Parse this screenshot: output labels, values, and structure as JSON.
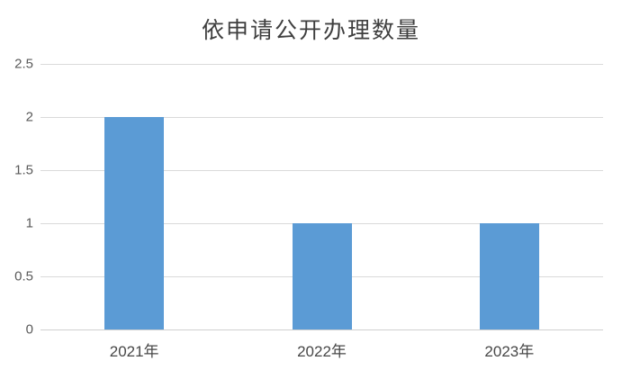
{
  "chart_data": {
    "type": "bar",
    "title": "依申请公开办理数量",
    "categories": [
      "2021年",
      "2022年",
      "2023年"
    ],
    "values": [
      2,
      1,
      1
    ],
    "xlabel": "",
    "ylabel": "",
    "ylim": [
      0,
      2.5
    ],
    "yticks": [
      0,
      0.5,
      1,
      1.5,
      2,
      2.5
    ],
    "ytick_labels": [
      "0",
      "0.5",
      "1",
      "1.5",
      "2",
      "2.5"
    ],
    "grid": true,
    "legend": "none",
    "bar_color": "#5B9BD5",
    "gridline_color": "#dadada",
    "axis_line_color": "#d0d0d0",
    "title_color": "#3f3f3f",
    "tick_label_color": "#595959",
    "background_color": "#ffffff"
  }
}
